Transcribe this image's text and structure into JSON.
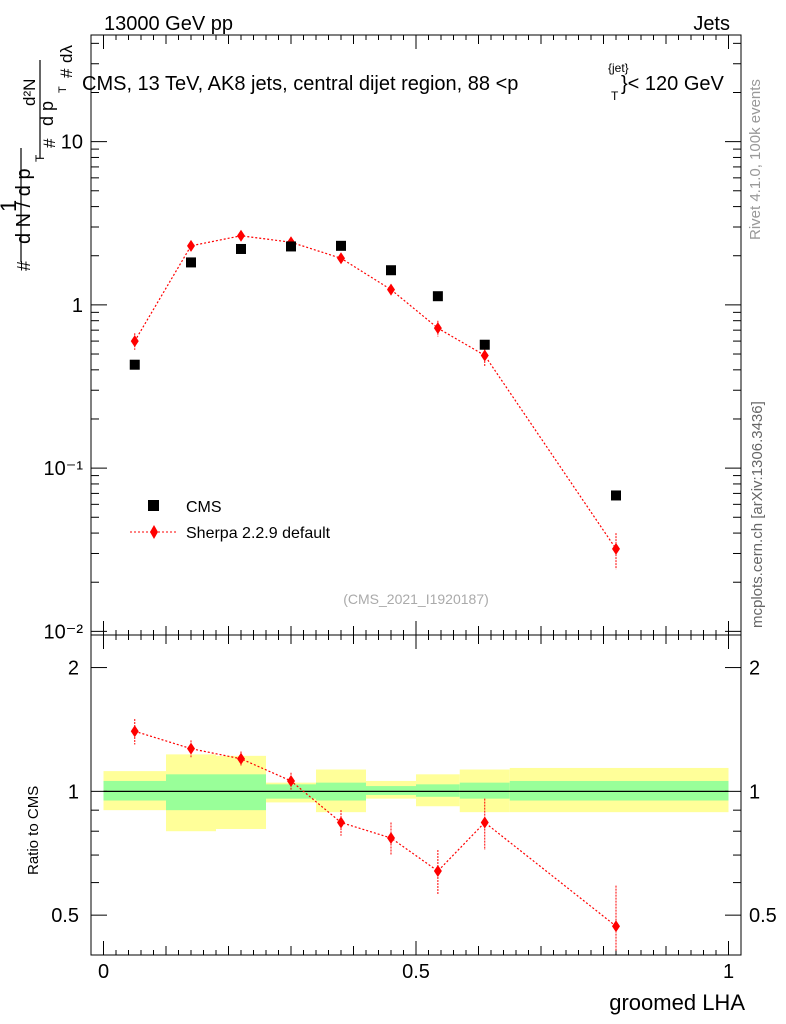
{
  "header": {
    "left": "13000 GeV pp",
    "right": "Jets",
    "title": "CMS, 13 TeV, AK8 jets, central dijet region, 88 <p",
    "title_sup": "{jet}",
    "title_sub": "T",
    "title_end": "}< 120 GeV"
  },
  "side": {
    "rivet": "Rivet 4.1.0,  100k events",
    "mcplots": "mcplots.cern.ch [arXiv:1306.3436]"
  },
  "watermark": "(CMS_2021_I1920187)",
  "ylabel_main": {
    "line1": "1",
    "den": "d N / d p",
    "d2n": "d²N",
    "dpt": "d p",
    "dlambda": "dλ",
    "sub": "T",
    "hash": "#"
  },
  "ylabel_ratio": "Ratio to CMS",
  "xlabel": "groomed LHA",
  "legend": {
    "cms": "CMS",
    "mc": "Sherpa 2.2.9 default"
  },
  "colors": {
    "data": "#000000",
    "mc": "#ff0000",
    "band_inner": "#99ff99",
    "band_outer": "#ffff99"
  },
  "chart_data": [
    {
      "type": "scatter",
      "name": "main",
      "yscale": "log",
      "xlim": [
        -0.02,
        1.02
      ],
      "ylim": [
        0.0095,
        45
      ],
      "ytick_labels": [
        "10⁻²",
        "10⁻¹",
        "1",
        "10"
      ],
      "bins": [
        [
          0.0,
          0.1
        ],
        [
          0.1,
          0.18
        ],
        [
          0.18,
          0.26
        ],
        [
          0.26,
          0.34
        ],
        [
          0.34,
          0.42
        ],
        [
          0.42,
          0.5
        ],
        [
          0.5,
          0.57
        ],
        [
          0.57,
          0.65
        ],
        [
          0.65,
          1.0
        ]
      ],
      "x": [
        0.05,
        0.14,
        0.22,
        0.3,
        0.38,
        0.46,
        0.535,
        0.61,
        0.82
      ],
      "series": [
        {
          "name": "CMS",
          "values": [
            0.43,
            1.82,
            2.2,
            2.28,
            2.3,
            1.63,
            1.13,
            0.57,
            0.068
          ]
        },
        {
          "name": "Sherpa 2.2.9 default",
          "values": [
            0.6,
            2.3,
            2.65,
            2.42,
            1.93,
            1.24,
            0.72,
            0.49,
            0.032
          ],
          "err": [
            0.07,
            0.15,
            0.15,
            0.15,
            0.12,
            0.1,
            0.08,
            0.07,
            0.008
          ]
        }
      ]
    },
    {
      "type": "scatter",
      "name": "ratio",
      "ylabel": "Ratio to CMS",
      "xlabel": "groomed LHA",
      "xlim": [
        -0.02,
        1.02
      ],
      "ylim": [
        0.4,
        2.4
      ],
      "ytick_labels": [
        "0.5",
        "1",
        "2"
      ],
      "xtick_labels": [
        "0",
        "0.5",
        "1"
      ],
      "bins": [
        [
          0.0,
          0.1
        ],
        [
          0.1,
          0.18
        ],
        [
          0.18,
          0.26
        ],
        [
          0.26,
          0.34
        ],
        [
          0.34,
          0.42
        ],
        [
          0.42,
          0.5
        ],
        [
          0.5,
          0.57
        ],
        [
          0.57,
          0.65
        ],
        [
          0.65,
          1.0
        ]
      ],
      "band_inner": [
        [
          0.95,
          1.06
        ],
        [
          0.9,
          1.1
        ],
        [
          0.9,
          1.1
        ],
        [
          0.96,
          1.04
        ],
        [
          0.95,
          1.05
        ],
        [
          0.98,
          1.03
        ],
        [
          0.97,
          1.04
        ],
        [
          0.96,
          1.05
        ],
        [
          0.95,
          1.06
        ]
      ],
      "band_outer": [
        [
          0.9,
          1.12
        ],
        [
          0.8,
          1.23
        ],
        [
          0.81,
          1.22
        ],
        [
          0.94,
          1.05
        ],
        [
          0.89,
          1.13
        ],
        [
          0.96,
          1.06
        ],
        [
          0.92,
          1.1
        ],
        [
          0.89,
          1.13
        ],
        [
          0.89,
          1.14
        ]
      ],
      "x": [
        0.05,
        0.14,
        0.22,
        0.3,
        0.38,
        0.46,
        0.535,
        0.61,
        0.82
      ],
      "values": [
        1.4,
        1.27,
        1.2,
        1.06,
        0.84,
        0.77,
        0.64,
        0.84,
        0.47
      ],
      "err": [
        0.1,
        0.06,
        0.05,
        0.05,
        0.06,
        0.07,
        0.08,
        0.12,
        0.12
      ]
    }
  ]
}
